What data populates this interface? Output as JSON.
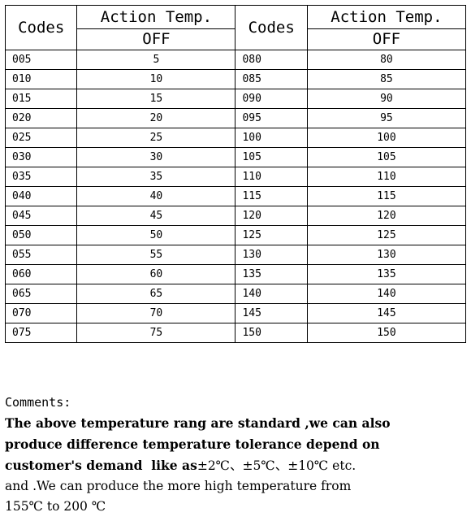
{
  "table": {
    "header_codes_left": "Codes",
    "header_action_left": "Action Temp.",
    "header_off_left": "OFF",
    "header_codes_right": "Codes",
    "header_action_right": "Action Temp.",
    "header_off_right": "OFF",
    "rows": [
      {
        "code_a": "005",
        "temp_a": "5",
        "code_b": "080",
        "temp_b": "80"
      },
      {
        "code_a": "010",
        "temp_a": "10",
        "code_b": "085",
        "temp_b": "85"
      },
      {
        "code_a": "015",
        "temp_a": "15",
        "code_b": "090",
        "temp_b": "90"
      },
      {
        "code_a": "020",
        "temp_a": "20",
        "code_b": "095",
        "temp_b": "95"
      },
      {
        "code_a": "025",
        "temp_a": "25",
        "code_b": "100",
        "temp_b": "100"
      },
      {
        "code_a": "030",
        "temp_a": "30",
        "code_b": "105",
        "temp_b": "105"
      },
      {
        "code_a": "035",
        "temp_a": "35",
        "code_b": "110",
        "temp_b": "110"
      },
      {
        "code_a": "040",
        "temp_a": "40",
        "code_b": "115",
        "temp_b": "115"
      },
      {
        "code_a": "045",
        "temp_a": "45",
        "code_b": "120",
        "temp_b": "120"
      },
      {
        "code_a": "050",
        "temp_a": "50",
        "code_b": "125",
        "temp_b": "125"
      },
      {
        "code_a": "055",
        "temp_a": "55",
        "code_b": "130",
        "temp_b": "130"
      },
      {
        "code_a": "060",
        "temp_a": "60",
        "code_b": "135",
        "temp_b": "135"
      },
      {
        "code_a": "065",
        "temp_a": "65",
        "code_b": "140",
        "temp_b": "140"
      },
      {
        "code_a": "070",
        "temp_a": "70",
        "code_b": "145",
        "temp_b": "145"
      },
      {
        "code_a": "075",
        "temp_a": "75",
        "code_b": "150",
        "temp_b": "150"
      }
    ]
  },
  "comments": {
    "label": "Comments:",
    "line1": "The above temperature rang are standard ,we can also",
    "line2": "produce difference temperature tolerance depend on",
    "line3_bold": "customer's demand  like as",
    "line3_rest": "±2℃、±5℃、±10℃ etc.",
    "line4": "and .We can produce the more high temperature from",
    "line5": "155℃ to 200 ℃"
  }
}
